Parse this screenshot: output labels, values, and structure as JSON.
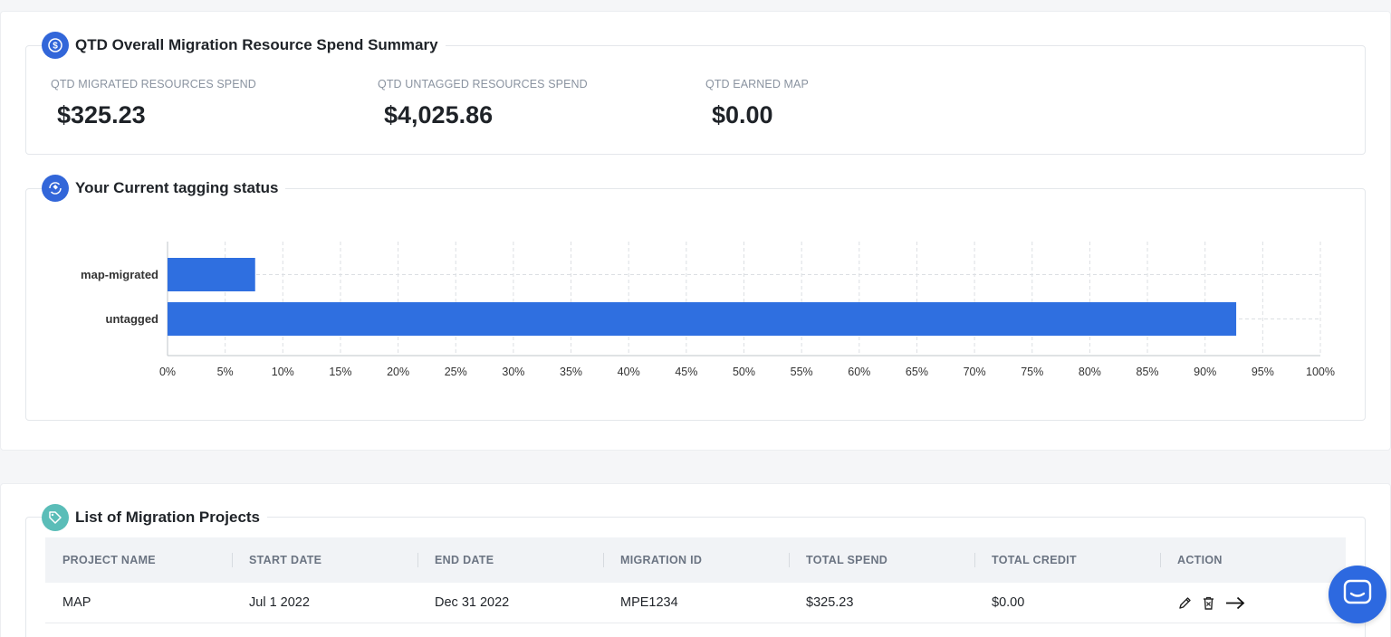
{
  "summary": {
    "title": "QTD Overall Migration Resource Spend Summary",
    "icon": "dollar-coin-icon",
    "metrics": [
      {
        "label": "QTD MIGRATED RESOURCES SPEND",
        "value": "$325.23"
      },
      {
        "label": "QTD UNTAGGED RESOURCES SPEND",
        "value": "$4,025.86"
      },
      {
        "label": "QTD EARNED MAP",
        "value": "$0.00"
      }
    ]
  },
  "tagging": {
    "title": "Your Current tagging status",
    "icon": "tag-refresh-icon"
  },
  "chart_data": {
    "type": "bar",
    "orientation": "horizontal",
    "categories": [
      "map-migrated",
      "untagged"
    ],
    "values": [
      7.6,
      92.7
    ],
    "xlim": [
      0,
      100
    ],
    "x_ticks": [
      "0%",
      "5%",
      "10%",
      "15%",
      "20%",
      "25%",
      "30%",
      "35%",
      "40%",
      "45%",
      "50%",
      "55%",
      "60%",
      "65%",
      "70%",
      "75%",
      "80%",
      "85%",
      "90%",
      "95%",
      "100%"
    ],
    "grid": true,
    "bar_color": "#2f6fe0"
  },
  "projects": {
    "title": "List of Migration Projects",
    "icon": "tag-icon",
    "columns": [
      "PROJECT NAME",
      "START DATE",
      "END DATE",
      "MIGRATION ID",
      "TOTAL SPEND",
      "TOTAL CREDIT",
      "ACTION"
    ],
    "rows": [
      {
        "project_name": "MAP",
        "start_date": "Jul 1 2022",
        "end_date": "Dec 31 2022",
        "migration_id": "MPE1234",
        "total_spend": "$325.23",
        "total_credit": "$0.00"
      }
    ],
    "actions": [
      "edit-icon",
      "delete-icon",
      "arrow-right-icon"
    ]
  },
  "chat": {
    "icon": "chat-icon",
    "color": "#2d69e0"
  }
}
